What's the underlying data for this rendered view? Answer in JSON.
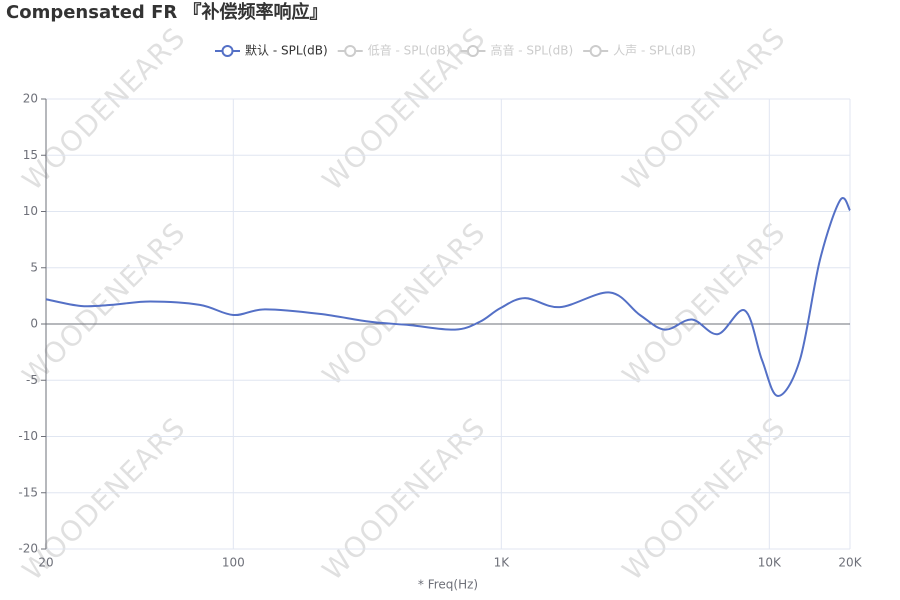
{
  "chart_data": {
    "type": "line",
    "title": "Compensated FR 『补偿频率响应』",
    "x_label": "* Freq(Hz)",
    "watermark": "WOODENEARS",
    "log_x": true,
    "grid": true,
    "x": [
      20,
      27,
      35,
      49,
      75,
      100,
      131,
      210,
      324,
      456,
      672,
      832,
      990,
      1225,
      1655,
      2540,
      3290,
      4080,
      5140,
      6430,
      8100,
      9390,
      10770,
      13000,
      15450,
      18370,
      20000
    ],
    "series": [
      {
        "name": "默认 - SPL(dB)",
        "color": "#5470c6",
        "values": [
          2.2,
          1.6,
          1.7,
          2.0,
          1.7,
          0.8,
          1.3,
          0.9,
          0.2,
          -0.1,
          -0.5,
          0.2,
          1.4,
          2.3,
          1.5,
          2.8,
          0.8,
          -0.5,
          0.4,
          -0.9,
          1.2,
          -3.2,
          -6.4,
          -3.2,
          5.7,
          11.0,
          10.1
        ]
      }
    ],
    "inactive_legend": [
      "低音 - SPL(dB)",
      "高音 - SPL(dB)",
      "人声 - SPL(dB)"
    ],
    "xlim": [
      20,
      20000
    ],
    "xticks": [
      20,
      100,
      {
        "value": 1000,
        "label": "1K"
      },
      {
        "value": 10000,
        "label": "10K"
      },
      {
        "value": 20000,
        "label": "20K"
      }
    ],
    "ylim": [
      -20,
      20
    ],
    "yticks": [
      -20,
      -15,
      -10,
      -5,
      0,
      5,
      10,
      15,
      20
    ]
  }
}
